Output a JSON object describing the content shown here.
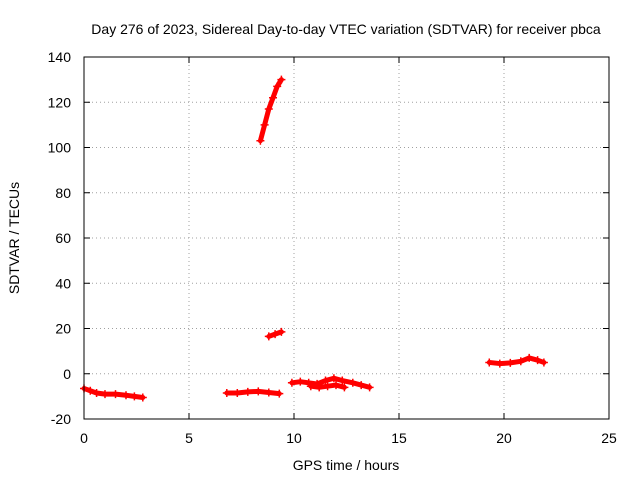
{
  "chart_data": {
    "type": "scatter",
    "title": "Day 276 of 2023, Sidereal Day-to-day VTEC variation (SDTVAR) for receiver pbca",
    "xlabel": "GPS time / hours",
    "ylabel": "SDTVAR / TECUs",
    "xlim": [
      0,
      25
    ],
    "ylim": [
      -20,
      140
    ],
    "xticks": [
      0,
      5,
      10,
      15,
      20,
      25
    ],
    "yticks": [
      -20,
      0,
      20,
      40,
      60,
      80,
      100,
      120,
      140
    ],
    "grid": true,
    "legend": "none",
    "marker": "plus",
    "color": "#ff0000",
    "segments": [
      [
        [
          0.0,
          -6.5
        ],
        [
          0.3,
          -7.5
        ],
        [
          0.6,
          -8.5
        ],
        [
          1.0,
          -9.0
        ],
        [
          1.5,
          -9.0
        ],
        [
          2.0,
          -9.5
        ],
        [
          2.4,
          -10.0
        ],
        [
          2.8,
          -10.5
        ]
      ],
      [
        [
          6.8,
          -8.5
        ],
        [
          7.3,
          -8.5
        ],
        [
          7.8,
          -8.0
        ],
        [
          8.3,
          -7.8
        ],
        [
          8.8,
          -8.3
        ],
        [
          9.3,
          -8.8
        ]
      ],
      [
        [
          8.4,
          103
        ],
        [
          8.6,
          110
        ],
        [
          8.8,
          117
        ],
        [
          9.0,
          122
        ],
        [
          9.2,
          127
        ],
        [
          9.4,
          130
        ]
      ],
      [
        [
          8.8,
          16.5
        ],
        [
          9.1,
          17.5
        ],
        [
          9.4,
          18.5
        ]
      ],
      [
        [
          9.9,
          -4.0
        ],
        [
          10.3,
          -3.5
        ],
        [
          10.7,
          -4.0
        ],
        [
          11.1,
          -4.5
        ],
        [
          11.5,
          -3.0
        ],
        [
          11.9,
          -2.0
        ],
        [
          12.3,
          -3.0
        ],
        [
          12.8,
          -4.0
        ],
        [
          13.2,
          -5.0
        ],
        [
          13.6,
          -6.0
        ]
      ],
      [
        [
          10.8,
          -5.5
        ],
        [
          11.2,
          -6.0
        ],
        [
          11.6,
          -5.5
        ],
        [
          12.0,
          -5.0
        ],
        [
          12.4,
          -6.0
        ]
      ],
      [
        [
          19.3,
          5.0
        ],
        [
          19.8,
          4.5
        ],
        [
          20.3,
          4.8
        ],
        [
          20.8,
          5.5
        ],
        [
          21.2,
          7.0
        ],
        [
          21.6,
          6.0
        ],
        [
          21.9,
          5.0
        ]
      ]
    ]
  }
}
